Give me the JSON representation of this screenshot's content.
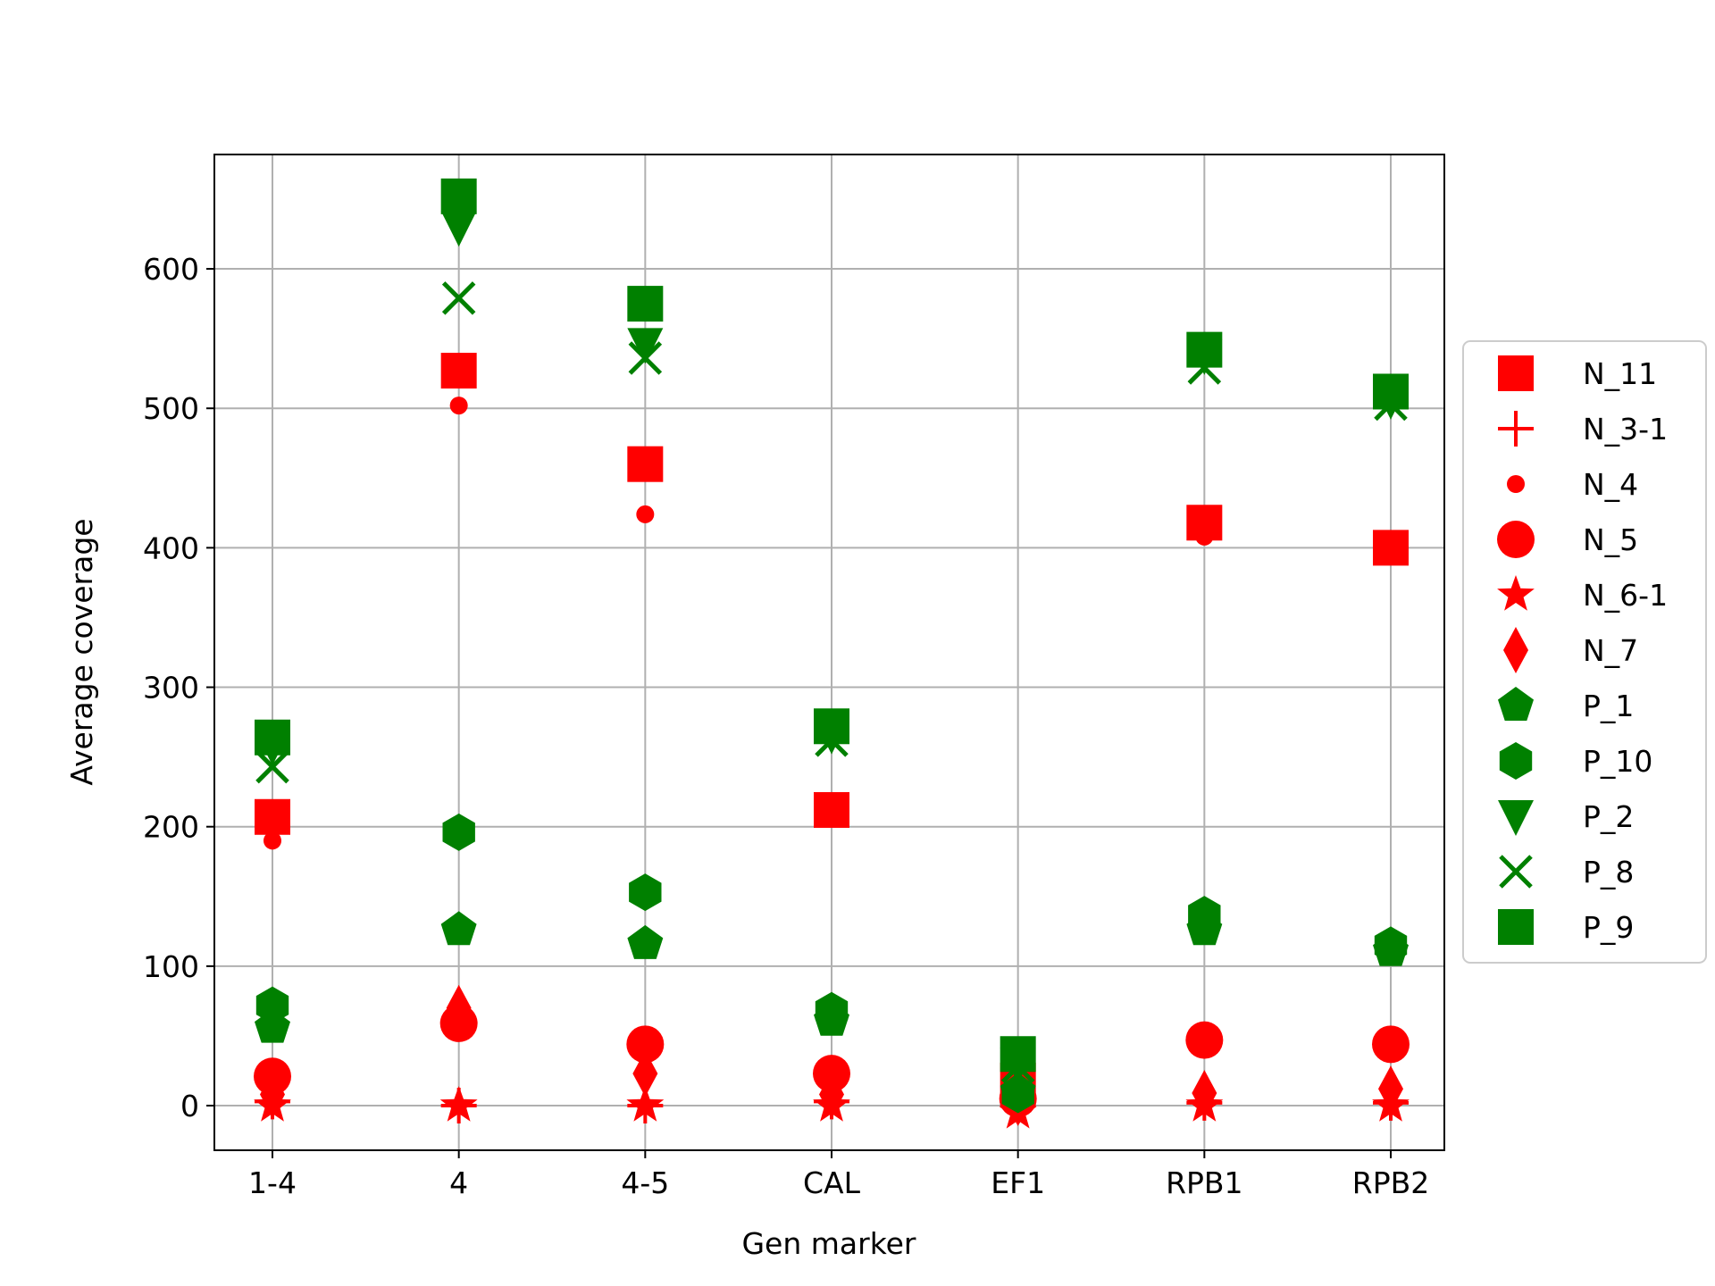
{
  "chart_data": {
    "type": "scatter",
    "xlabel": "Gen marker",
    "ylabel": "Average coverage",
    "categories": [
      "1-4",
      "4",
      "4-5",
      "CAL",
      "EF1",
      "RPB1",
      "RPB2"
    ],
    "ylim": [
      -32,
      682
    ],
    "yticks": [
      0,
      100,
      200,
      300,
      400,
      500,
      600
    ],
    "grid": true,
    "legend_position": "right",
    "series": [
      {
        "name": "N_11",
        "color": "#ff0000",
        "marker": "square",
        "values": [
          207,
          527,
          460,
          212,
          18,
          418,
          400
        ]
      },
      {
        "name": "N_3-1",
        "color": "#ff0000",
        "marker": "plus",
        "values": [
          3,
          0,
          0,
          3,
          0,
          2,
          2
        ]
      },
      {
        "name": "N_4",
        "color": "#ff0000",
        "marker": "point",
        "values": [
          190,
          502,
          424,
          208,
          15,
          408,
          398
        ]
      },
      {
        "name": "N_5",
        "color": "#ff0000",
        "marker": "circle",
        "values": [
          21,
          59,
          44,
          23,
          5,
          47,
          44
        ]
      },
      {
        "name": "N_6-1",
        "color": "#ff0000",
        "marker": "star",
        "values": [
          0,
          0,
          0,
          0,
          -5,
          0,
          0
        ]
      },
      {
        "name": "N_7",
        "color": "#ff0000",
        "marker": "diamond",
        "values": [
          8,
          70,
          23,
          8,
          2,
          9,
          12
        ]
      },
      {
        "name": "P_1",
        "color": "#008000",
        "marker": "pentagon",
        "values": [
          56,
          126,
          116,
          61,
          10,
          126,
          111
        ]
      },
      {
        "name": "P_10",
        "color": "#008000",
        "marker": "hexagon",
        "values": [
          72,
          196,
          153,
          68,
          8,
          137,
          115
        ]
      },
      {
        "name": "P_2",
        "color": "#008000",
        "marker": "triangle-down",
        "values": [
          258,
          630,
          546,
          266,
          30,
          538,
          506
        ]
      },
      {
        "name": "P_8",
        "color": "#008000",
        "marker": "x",
        "values": [
          243,
          579,
          536,
          262,
          28,
          529,
          503
        ]
      },
      {
        "name": "P_9",
        "color": "#008000",
        "marker": "square",
        "values": [
          264,
          652,
          575,
          272,
          37,
          542,
          512
        ]
      }
    ]
  }
}
